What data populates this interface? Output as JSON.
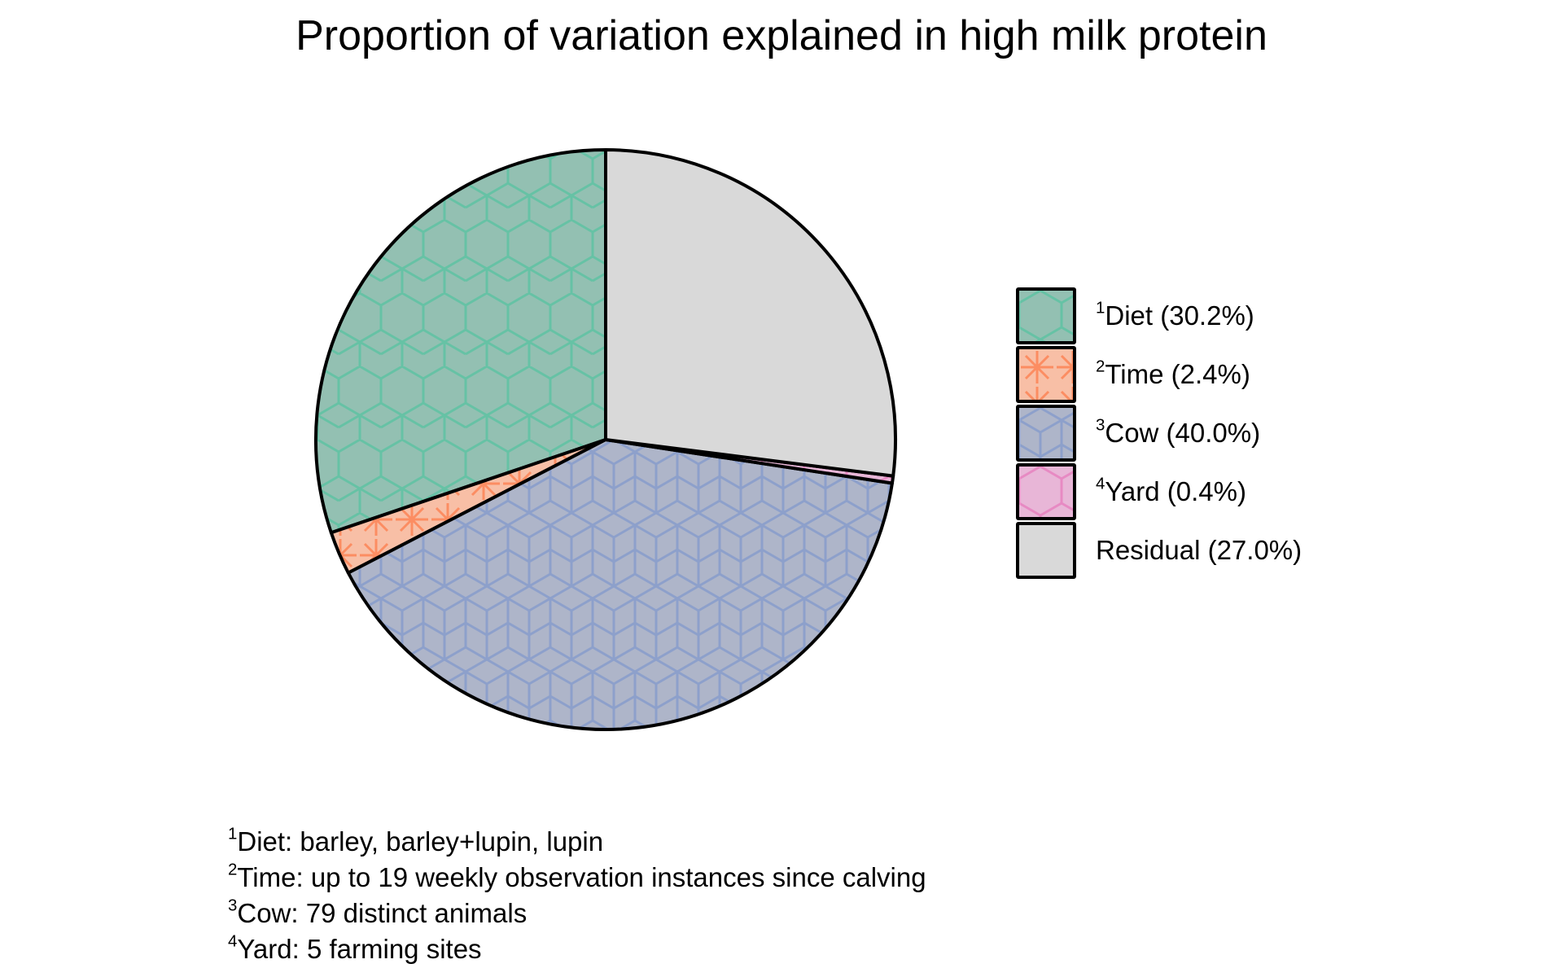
{
  "chart_data": {
    "type": "pie",
    "title": "Proportion of variation explained in high milk protein",
    "start_angle_deg": 0,
    "direction": "counterclockwise",
    "slices": [
      {
        "sup": "1",
        "label": "Diet",
        "value": 30.2,
        "display": "Diet (30.2%)",
        "color": "#93c0b2",
        "pattern_color": "#66c2a5",
        "pattern": "hexagon"
      },
      {
        "sup": "2",
        "label": "Time",
        "value": 2.4,
        "display": "Time (2.4%)",
        "color": "#f8bfa6",
        "pattern_color": "#fc8d62",
        "pattern": "star"
      },
      {
        "sup": "3",
        "label": "Cow",
        "value": 40.0,
        "display": "Cow (40.0%)",
        "color": "#aeb5c9",
        "pattern_color": "#8da0cb",
        "pattern": "cubes"
      },
      {
        "sup": "4",
        "label": "Yard",
        "value": 0.4,
        "display": "Yard (0.4%)",
        "color": "#e8b6d7",
        "pattern_color": "#e78ac3",
        "pattern": "hexagon"
      },
      {
        "sup": "",
        "label": "Residual",
        "value": 27.0,
        "display": "Residual (27.0%)",
        "color": "#d9d9d9",
        "pattern_color": "",
        "pattern": "none"
      }
    ],
    "legend_position": "right"
  },
  "footnotes": [
    {
      "sup": "1",
      "text": "Diet: barley, barley+lupin, lupin"
    },
    {
      "sup": "2",
      "text": "Time: up to 19 weekly observation instances since calving"
    },
    {
      "sup": "3",
      "text": "Cow: 79 distinct animals"
    },
    {
      "sup": "4",
      "text": "Yard: 5 farming sites"
    }
  ]
}
